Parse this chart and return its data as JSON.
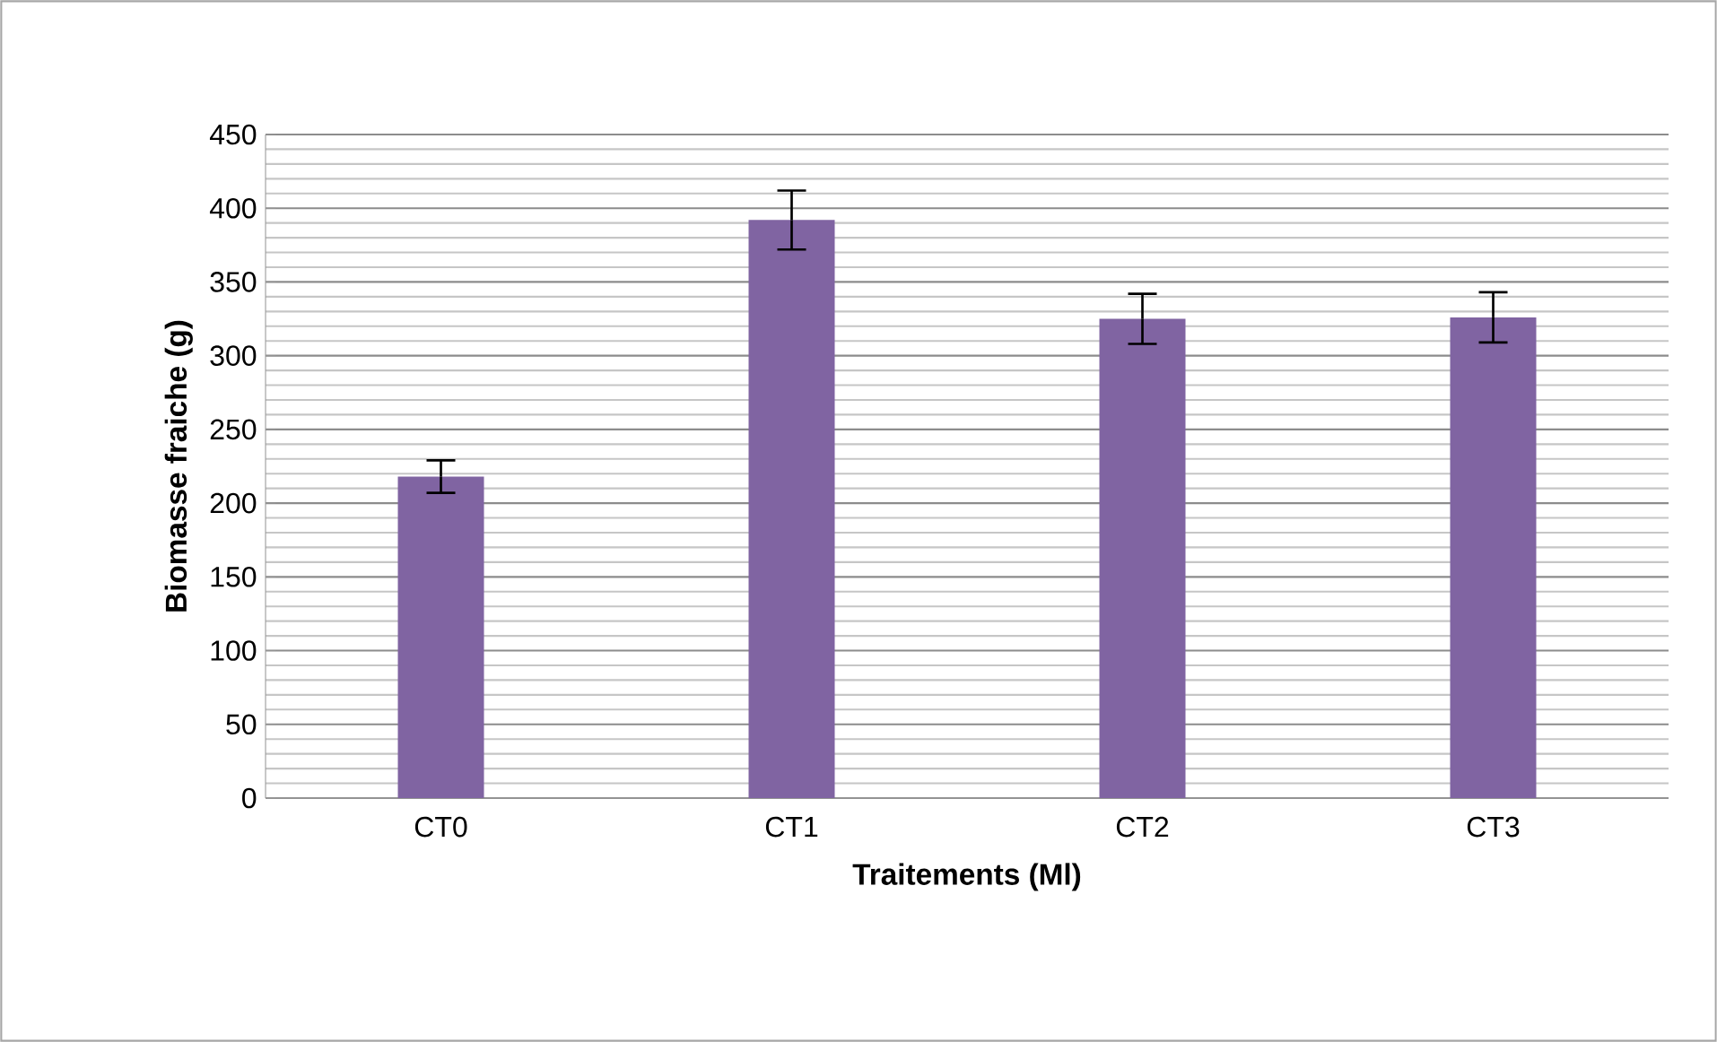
{
  "chart_data": {
    "type": "bar",
    "xlabel": "Traitements (Ml)",
    "ylabel": "Biomasse fraiche (g)",
    "categories": [
      "CT0",
      "CT1",
      "CT2",
      "CT3"
    ],
    "values": [
      218,
      392,
      325,
      326
    ],
    "errors": [
      11,
      20,
      17,
      17
    ],
    "color": "#8064a2",
    "ylim": [
      0,
      450
    ],
    "yticks": [
      0,
      50,
      100,
      150,
      200,
      250,
      300,
      350,
      400,
      450
    ],
    "grid": "y"
  }
}
